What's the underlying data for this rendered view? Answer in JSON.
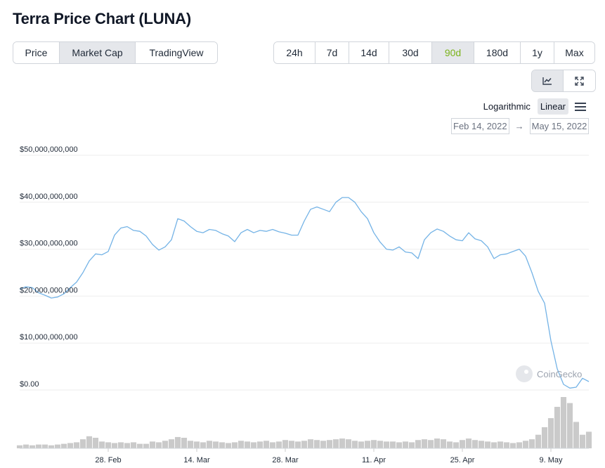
{
  "page_title": "Terra Price Chart (LUNA)",
  "metric_tabs": [
    {
      "label": "Price",
      "active": false
    },
    {
      "label": "Market Cap",
      "active": true
    },
    {
      "label": "TradingView",
      "active": false
    }
  ],
  "range_tabs": [
    {
      "label": "24h",
      "active": false
    },
    {
      "label": "7d",
      "active": false
    },
    {
      "label": "14d",
      "active": false
    },
    {
      "label": "30d",
      "active": false
    },
    {
      "label": "90d",
      "active": true
    },
    {
      "label": "180d",
      "active": false
    },
    {
      "label": "1y",
      "active": false
    },
    {
      "label": "Max",
      "active": false
    }
  ],
  "view_tools": [
    {
      "icon": "line-chart-icon",
      "active": true
    },
    {
      "icon": "expand-icon",
      "active": false
    }
  ],
  "scale": {
    "options": [
      "Logarithmic",
      "Linear"
    ],
    "selected": "Linear"
  },
  "date_range": {
    "from": "Feb 14, 2022",
    "to": "May 15, 2022"
  },
  "watermark": "CoinGecko",
  "colors": {
    "line": "#74b3e6",
    "volume": "#b8b8b8",
    "active_range": "#7bb31a"
  },
  "chart_data": {
    "type": "line",
    "ylim": [
      0,
      50000000000
    ],
    "yticks": [
      {
        "value": 0,
        "label": "$0.00"
      },
      {
        "value": 10000000000,
        "label": "$10,000,000,000"
      },
      {
        "value": 20000000000,
        "label": "$20,000,000,000"
      },
      {
        "value": 30000000000,
        "label": "$30,000,000,000"
      },
      {
        "value": 40000000000,
        "label": "$40,000,000,000"
      },
      {
        "value": 50000000000,
        "label": "$50,000,000,000"
      }
    ],
    "xlim": [
      "2022-02-14",
      "2022-05-15"
    ],
    "xticks": [
      {
        "date": "2022-02-28",
        "label": "28. Feb"
      },
      {
        "date": "2022-03-14",
        "label": "14. Mar"
      },
      {
        "date": "2022-03-28",
        "label": "28. Mar"
      },
      {
        "date": "2022-04-11",
        "label": "11. Apr"
      },
      {
        "date": "2022-04-25",
        "label": "25. Apr"
      },
      {
        "date": "2022-05-09",
        "label": "9. May"
      }
    ],
    "grid": true,
    "series": [
      {
        "values": [
          [
            "2022-02-14",
            21500000000
          ],
          [
            "2022-02-15",
            22000000000
          ],
          [
            "2022-02-16",
            21800000000
          ],
          [
            "2022-02-17",
            20700000000
          ],
          [
            "2022-02-18",
            20200000000
          ],
          [
            "2022-02-19",
            19600000000
          ],
          [
            "2022-02-20",
            19800000000
          ],
          [
            "2022-02-21",
            20500000000
          ],
          [
            "2022-02-22",
            21800000000
          ],
          [
            "2022-02-23",
            23000000000
          ],
          [
            "2022-02-24",
            25000000000
          ],
          [
            "2022-02-25",
            27500000000
          ],
          [
            "2022-02-26",
            29000000000
          ],
          [
            "2022-02-27",
            28800000000
          ],
          [
            "2022-02-28",
            29500000000
          ],
          [
            "2022-03-01",
            33000000000
          ],
          [
            "2022-03-02",
            34500000000
          ],
          [
            "2022-03-03",
            34800000000
          ],
          [
            "2022-03-04",
            34000000000
          ],
          [
            "2022-03-05",
            33800000000
          ],
          [
            "2022-03-06",
            32800000000
          ],
          [
            "2022-03-07",
            31000000000
          ],
          [
            "2022-03-08",
            29800000000
          ],
          [
            "2022-03-09",
            30500000000
          ],
          [
            "2022-03-10",
            32000000000
          ],
          [
            "2022-03-11",
            36500000000
          ],
          [
            "2022-03-12",
            36000000000
          ],
          [
            "2022-03-13",
            34800000000
          ],
          [
            "2022-03-14",
            33800000000
          ],
          [
            "2022-03-15",
            33500000000
          ],
          [
            "2022-03-16",
            34200000000
          ],
          [
            "2022-03-17",
            34000000000
          ],
          [
            "2022-03-18",
            33300000000
          ],
          [
            "2022-03-19",
            32800000000
          ],
          [
            "2022-03-20",
            31600000000
          ],
          [
            "2022-03-21",
            33500000000
          ],
          [
            "2022-03-22",
            34200000000
          ],
          [
            "2022-03-23",
            33500000000
          ],
          [
            "2022-03-24",
            34000000000
          ],
          [
            "2022-03-25",
            33800000000
          ],
          [
            "2022-03-26",
            34200000000
          ],
          [
            "2022-03-27",
            33700000000
          ],
          [
            "2022-03-28",
            33400000000
          ],
          [
            "2022-03-29",
            33000000000
          ],
          [
            "2022-03-30",
            33000000000
          ],
          [
            "2022-03-31",
            36000000000
          ],
          [
            "2022-04-01",
            38500000000
          ],
          [
            "2022-04-02",
            39000000000
          ],
          [
            "2022-04-03",
            38500000000
          ],
          [
            "2022-04-04",
            38000000000
          ],
          [
            "2022-04-05",
            40000000000
          ],
          [
            "2022-04-06",
            41000000000
          ],
          [
            "2022-04-07",
            41000000000
          ],
          [
            "2022-04-08",
            40000000000
          ],
          [
            "2022-04-09",
            38000000000
          ],
          [
            "2022-04-10",
            36500000000
          ],
          [
            "2022-04-11",
            33500000000
          ],
          [
            "2022-04-12",
            31500000000
          ],
          [
            "2022-04-13",
            30000000000
          ],
          [
            "2022-04-14",
            29800000000
          ],
          [
            "2022-04-15",
            30500000000
          ],
          [
            "2022-04-16",
            29400000000
          ],
          [
            "2022-04-17",
            29200000000
          ],
          [
            "2022-04-18",
            28000000000
          ],
          [
            "2022-04-19",
            32000000000
          ],
          [
            "2022-04-20",
            33500000000
          ],
          [
            "2022-04-21",
            34300000000
          ],
          [
            "2022-04-22",
            33800000000
          ],
          [
            "2022-04-23",
            32800000000
          ],
          [
            "2022-04-24",
            32000000000
          ],
          [
            "2022-04-25",
            31800000000
          ],
          [
            "2022-04-26",
            33500000000
          ],
          [
            "2022-04-27",
            32200000000
          ],
          [
            "2022-04-28",
            31800000000
          ],
          [
            "2022-04-29",
            30500000000
          ],
          [
            "2022-04-30",
            28000000000
          ],
          [
            "2022-05-01",
            28800000000
          ],
          [
            "2022-05-02",
            29000000000
          ],
          [
            "2022-05-03",
            29500000000
          ],
          [
            "2022-05-04",
            30000000000
          ],
          [
            "2022-05-05",
            28500000000
          ],
          [
            "2022-05-06",
            25000000000
          ],
          [
            "2022-05-07",
            21000000000
          ],
          [
            "2022-05-08",
            18500000000
          ],
          [
            "2022-05-09",
            10500000000
          ],
          [
            "2022-05-10",
            4500000000
          ],
          [
            "2022-05-11",
            1200000000
          ],
          [
            "2022-05-12",
            400000000
          ],
          [
            "2022-05-13",
            600000000
          ],
          [
            "2022-05-14",
            2500000000
          ],
          [
            "2022-05-15",
            1800000000
          ]
        ]
      }
    ],
    "volume": {
      "values": [
        [
          "2022-02-14",
          4
        ],
        [
          "2022-02-15",
          5
        ],
        [
          "2022-02-16",
          4
        ],
        [
          "2022-02-17",
          5
        ],
        [
          "2022-02-18",
          5
        ],
        [
          "2022-02-19",
          4
        ],
        [
          "2022-02-20",
          5
        ],
        [
          "2022-02-21",
          6
        ],
        [
          "2022-02-22",
          7
        ],
        [
          "2022-02-23",
          8
        ],
        [
          "2022-02-24",
          12
        ],
        [
          "2022-02-25",
          16
        ],
        [
          "2022-02-26",
          14
        ],
        [
          "2022-02-27",
          9
        ],
        [
          "2022-02-28",
          8
        ],
        [
          "2022-03-01",
          7
        ],
        [
          "2022-03-02",
          8
        ],
        [
          "2022-03-03",
          7
        ],
        [
          "2022-03-04",
          8
        ],
        [
          "2022-03-05",
          6
        ],
        [
          "2022-03-06",
          6
        ],
        [
          "2022-03-07",
          9
        ],
        [
          "2022-03-08",
          8
        ],
        [
          "2022-03-09",
          10
        ],
        [
          "2022-03-10",
          12
        ],
        [
          "2022-03-11",
          15
        ],
        [
          "2022-03-12",
          14
        ],
        [
          "2022-03-13",
          10
        ],
        [
          "2022-03-14",
          9
        ],
        [
          "2022-03-15",
          8
        ],
        [
          "2022-03-16",
          10
        ],
        [
          "2022-03-17",
          9
        ],
        [
          "2022-03-18",
          8
        ],
        [
          "2022-03-19",
          7
        ],
        [
          "2022-03-20",
          8
        ],
        [
          "2022-03-21",
          10
        ],
        [
          "2022-03-22",
          9
        ],
        [
          "2022-03-23",
          8
        ],
        [
          "2022-03-24",
          9
        ],
        [
          "2022-03-25",
          10
        ],
        [
          "2022-03-26",
          8
        ],
        [
          "2022-03-27",
          9
        ],
        [
          "2022-03-28",
          11
        ],
        [
          "2022-03-29",
          10
        ],
        [
          "2022-03-30",
          9
        ],
        [
          "2022-03-31",
          10
        ],
        [
          "2022-04-01",
          12
        ],
        [
          "2022-04-02",
          11
        ],
        [
          "2022-04-03",
          10
        ],
        [
          "2022-04-04",
          11
        ],
        [
          "2022-04-05",
          12
        ],
        [
          "2022-04-06",
          13
        ],
        [
          "2022-04-07",
          12
        ],
        [
          "2022-04-08",
          10
        ],
        [
          "2022-04-09",
          9
        ],
        [
          "2022-04-10",
          10
        ],
        [
          "2022-04-11",
          11
        ],
        [
          "2022-04-12",
          10
        ],
        [
          "2022-04-13",
          9
        ],
        [
          "2022-04-14",
          9
        ],
        [
          "2022-04-15",
          8
        ],
        [
          "2022-04-16",
          9
        ],
        [
          "2022-04-17",
          8
        ],
        [
          "2022-04-18",
          11
        ],
        [
          "2022-04-19",
          12
        ],
        [
          "2022-04-20",
          11
        ],
        [
          "2022-04-21",
          13
        ],
        [
          "2022-04-22",
          12
        ],
        [
          "2022-04-23",
          9
        ],
        [
          "2022-04-24",
          8
        ],
        [
          "2022-04-25",
          11
        ],
        [
          "2022-04-26",
          13
        ],
        [
          "2022-04-27",
          11
        ],
        [
          "2022-04-28",
          10
        ],
        [
          "2022-04-29",
          9
        ],
        [
          "2022-04-30",
          8
        ],
        [
          "2022-05-01",
          9
        ],
        [
          "2022-05-02",
          8
        ],
        [
          "2022-05-03",
          7
        ],
        [
          "2022-05-04",
          8
        ],
        [
          "2022-05-05",
          10
        ],
        [
          "2022-05-06",
          12
        ],
        [
          "2022-05-07",
          18
        ],
        [
          "2022-05-08",
          28
        ],
        [
          "2022-05-09",
          40
        ],
        [
          "2022-05-10",
          55
        ],
        [
          "2022-05-11",
          68
        ],
        [
          "2022-05-12",
          60
        ],
        [
          "2022-05-13",
          35
        ],
        [
          "2022-05-14",
          18
        ],
        [
          "2022-05-15",
          22
        ]
      ]
    }
  }
}
